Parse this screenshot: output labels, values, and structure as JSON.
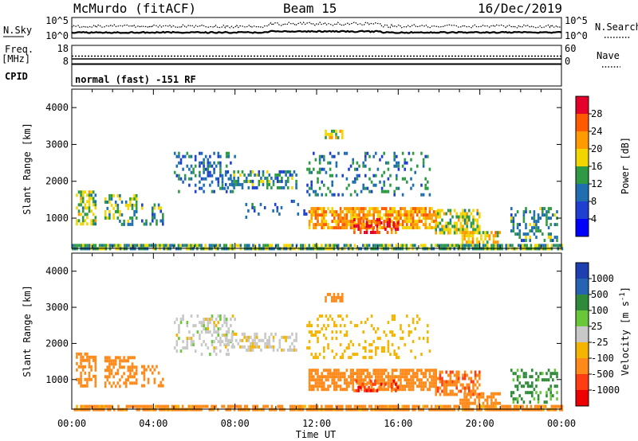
{
  "header": {
    "station": "McMurdo (fitACF)",
    "beam": "Beam 15",
    "date": "16/Dec/2019"
  },
  "noise_panel": {
    "left_label": "N.Sky",
    "right_label": "N.Search",
    "left_ticks": [
      "10^5",
      "10^0"
    ],
    "right_ticks": [
      "10^5",
      "10^0"
    ]
  },
  "freq_panel": {
    "left_label_1": "Freq.",
    "left_label_2": "[MHz]",
    "right_label": "Nave",
    "left_ticks": [
      "18",
      "8"
    ],
    "right_ticks": [
      "60",
      "0"
    ]
  },
  "cpid": {
    "label": "CPID",
    "value": "normal (fast) -151 RF"
  },
  "x_axis": {
    "label": "Time UT",
    "ticks": [
      "00:00",
      "04:00",
      "08:00",
      "12:00",
      "16:00",
      "20:00",
      "00:00"
    ]
  },
  "power_colorbar": {
    "label": "Power [dB]",
    "ticks": [
      "28",
      "24",
      "20",
      "16",
      "12",
      "8",
      "4"
    ],
    "colors": [
      "#e5002b",
      "#ff5a00",
      "#ff9a00",
      "#f3d600",
      "#2f9a44",
      "#1f6fb0",
      "#1f3fd0",
      "#0000ff"
    ]
  },
  "velocity_colorbar": {
    "label": "Velocity [m s^-1]",
    "ticks": [
      "1000",
      "500",
      "100",
      "25",
      "-25",
      "-100",
      "-500",
      "-1000"
    ],
    "colors": [
      "#1d3fb0",
      "#2763b3",
      "#2f8a3a",
      "#68c83a",
      "#c8c8c8",
      "#f4b400",
      "#ff8a1a",
      "#ff3c12",
      "#ee0000"
    ]
  },
  "chart_data": [
    {
      "type": "heatmap",
      "title": "Power",
      "xlabel": "Time UT",
      "ylabel": "Slant Range [km]",
      "xlim_hours": [
        0,
        24
      ],
      "ylim": [
        180,
        4500
      ],
      "y_ticks": [
        1000,
        2000,
        3000,
        4000
      ],
      "features": [
        {
          "t0": 0.2,
          "t1": 1.2,
          "r0": 800,
          "r1": 1750,
          "level": 14,
          "density": 0.6
        },
        {
          "t0": 1.6,
          "t1": 3.2,
          "r0": 850,
          "r1": 1650,
          "level": 13,
          "density": 0.45
        },
        {
          "t0": 3.4,
          "t1": 4.5,
          "r0": 800,
          "r1": 1400,
          "level": 10,
          "density": 0.35
        },
        {
          "t0": 5.0,
          "t1": 8.0,
          "r0": 1700,
          "r1": 2800,
          "level": 8,
          "density": 0.3
        },
        {
          "t0": 7.5,
          "t1": 11.0,
          "r0": 1800,
          "r1": 2300,
          "level": 10,
          "density": 0.45
        },
        {
          "t0": 8.5,
          "t1": 11.5,
          "r0": 1000,
          "r1": 1500,
          "level": 7,
          "density": 0.15
        },
        {
          "t0": 11.5,
          "t1": 17.5,
          "r0": 1600,
          "r1": 2800,
          "level": 9,
          "density": 0.2
        },
        {
          "t0": 12.4,
          "t1": 13.3,
          "r0": 3200,
          "r1": 3400,
          "level": 16,
          "density": 0.8
        },
        {
          "t0": 11.6,
          "t1": 17.8,
          "r0": 700,
          "r1": 1300,
          "level": 20,
          "density": 0.75
        },
        {
          "t0": 13.8,
          "t1": 16.0,
          "r0": 650,
          "r1": 1000,
          "level": 26,
          "density": 0.5
        },
        {
          "t0": 17.8,
          "t1": 20.0,
          "r0": 600,
          "r1": 1250,
          "level": 14,
          "density": 0.6
        },
        {
          "t0": 19.0,
          "t1": 21.0,
          "r0": 350,
          "r1": 650,
          "level": 18,
          "density": 0.55
        },
        {
          "t0": 21.5,
          "t1": 23.8,
          "r0": 400,
          "r1": 1300,
          "level": 10,
          "density": 0.35
        },
        {
          "t0": 0.0,
          "t1": 24.0,
          "r0": 180,
          "r1": 300,
          "level": 12,
          "density": 0.8
        }
      ]
    },
    {
      "type": "heatmap",
      "title": "Velocity",
      "xlabel": "Time UT",
      "ylabel": "Slant Range [km]",
      "xlim_hours": [
        0,
        24
      ],
      "ylim": [
        180,
        4500
      ],
      "y_ticks": [
        1000,
        2000,
        3000,
        4000
      ],
      "features": [
        {
          "t0": 0.2,
          "t1": 1.2,
          "r0": 800,
          "r1": 1750,
          "level": -300,
          "density": 0.6
        },
        {
          "t0": 1.6,
          "t1": 3.2,
          "r0": 850,
          "r1": 1650,
          "level": -250,
          "density": 0.45
        },
        {
          "t0": 3.4,
          "t1": 4.5,
          "r0": 800,
          "r1": 1400,
          "level": -200,
          "density": 0.35
        },
        {
          "t0": 5.0,
          "t1": 8.0,
          "r0": 1700,
          "r1": 2800,
          "level": 0,
          "density": 0.3
        },
        {
          "t0": 7.5,
          "t1": 11.0,
          "r0": 1800,
          "r1": 2300,
          "level": -10,
          "density": 0.45
        },
        {
          "t0": 11.5,
          "t1": 17.5,
          "r0": 1600,
          "r1": 2800,
          "level": -60,
          "density": 0.2
        },
        {
          "t0": 12.4,
          "t1": 13.3,
          "r0": 3200,
          "r1": 3400,
          "level": -200,
          "density": 0.8
        },
        {
          "t0": 11.6,
          "t1": 17.8,
          "r0": 700,
          "r1": 1300,
          "level": -300,
          "density": 0.75
        },
        {
          "t0": 13.8,
          "t1": 16.0,
          "r0": 650,
          "r1": 1000,
          "level": -600,
          "density": 0.4
        },
        {
          "t0": 17.8,
          "t1": 20.0,
          "r0": 600,
          "r1": 1250,
          "level": -400,
          "density": 0.6
        },
        {
          "t0": 19.0,
          "t1": 21.0,
          "r0": 350,
          "r1": 650,
          "level": -250,
          "density": 0.55
        },
        {
          "t0": 21.5,
          "t1": 23.8,
          "r0": 400,
          "r1": 1300,
          "level": 80,
          "density": 0.35
        },
        {
          "t0": 0.0,
          "t1": 24.0,
          "r0": 180,
          "r1": 300,
          "level": -150,
          "density": 0.8
        }
      ]
    }
  ]
}
